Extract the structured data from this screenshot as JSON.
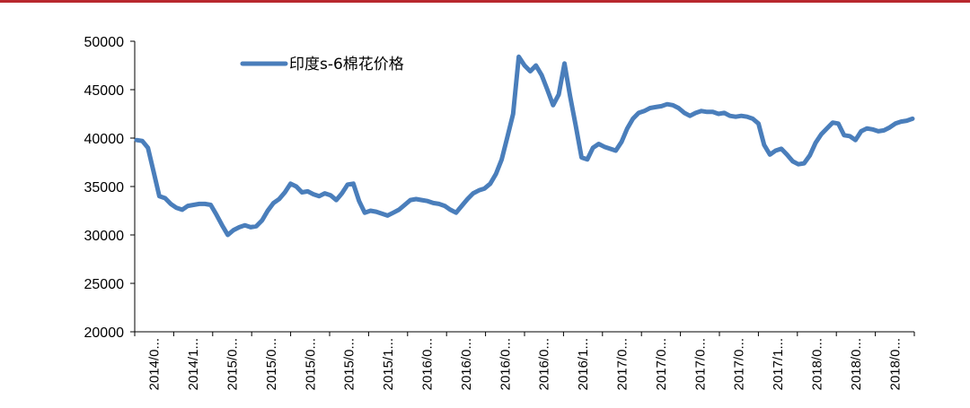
{
  "colors": {
    "top_rule": "#b8282e",
    "series": "#4a7ebb",
    "axis": "#000000"
  },
  "chart_data": {
    "type": "line",
    "title": "",
    "xlabel": "",
    "ylabel": "",
    "ylim": [
      20000,
      50000
    ],
    "y_ticks": [
      "50000",
      "45000",
      "40000",
      "35000",
      "30000",
      "25000",
      "20000"
    ],
    "y_tick_values": [
      50000,
      45000,
      40000,
      35000,
      30000,
      25000,
      20000
    ],
    "x_tick_labels": [
      "2014/0...",
      "2014/1...",
      "2015/0...",
      "2015/0...",
      "2015/0...",
      "2015/0...",
      "2015/1...",
      "2016/0...",
      "2016/0...",
      "2016/0...",
      "2016/0...",
      "2016/1...",
      "2017/0...",
      "2017/0...",
      "2017/0...",
      "2017/0...",
      "2017/1...",
      "2018/0...",
      "2018/0...",
      "2018/0..."
    ],
    "legend": {
      "placement": "top-left"
    },
    "grid": false,
    "series": [
      {
        "name": "印度s-6棉花价格",
        "values": [
          39800,
          39700,
          39000,
          36500,
          34000,
          33800,
          33200,
          32800,
          32600,
          33000,
          33100,
          33200,
          33200,
          33100,
          32100,
          31000,
          30000,
          30500,
          30800,
          31000,
          30800,
          30900,
          31500,
          32500,
          33300,
          33700,
          34400,
          35300,
          35000,
          34400,
          34500,
          34200,
          34000,
          34300,
          34100,
          33600,
          34300,
          35200,
          35300,
          33500,
          32300,
          32500,
          32400,
          32200,
          32000,
          32300,
          32600,
          33100,
          33600,
          33700,
          33600,
          33500,
          33300,
          33200,
          33000,
          32600,
          32300,
          33000,
          33700,
          34300,
          34600,
          34800,
          35300,
          36300,
          37800,
          40100,
          42500,
          48400,
          47500,
          46900,
          47500,
          46500,
          45000,
          43400,
          44500,
          47700,
          44300,
          41200,
          38000,
          37800,
          39000,
          39400,
          39100,
          38900,
          38700,
          39600,
          41000,
          42000,
          42600,
          42800,
          43100,
          43200,
          43300,
          43500,
          43400,
          43100,
          42600,
          42300,
          42600,
          42800,
          42700,
          42700,
          42500,
          42600,
          42300,
          42200,
          42300,
          42200,
          42000,
          41500,
          39300,
          38300,
          38700,
          38900,
          38300,
          37600,
          37300,
          37400,
          38200,
          39500,
          40400,
          41000,
          41600,
          41500,
          40300,
          40200,
          39800,
          40700,
          41000,
          40900,
          40700,
          40800,
          41100,
          41500,
          41700,
          41800,
          42000
        ]
      }
    ]
  }
}
